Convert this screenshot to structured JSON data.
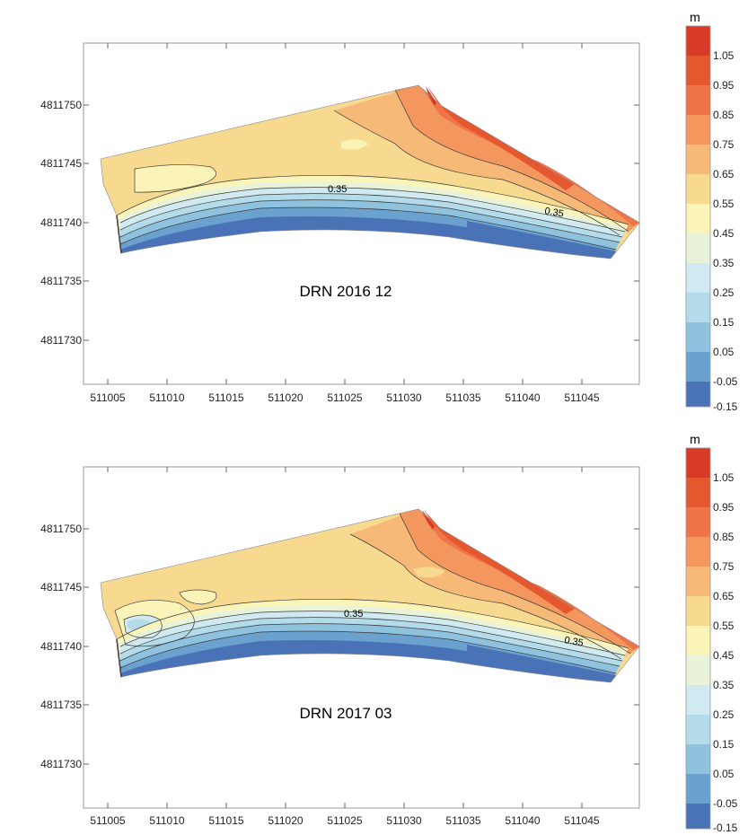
{
  "colorbar": {
    "unit": "m",
    "tick_labels": [
      "1.05",
      "0.95",
      "0.85",
      "0.75",
      "0.65",
      "0.55",
      "0.45",
      "0.35",
      "0.25",
      "0.15",
      "0.05",
      "-0.05",
      "-0.15"
    ],
    "colors": [
      "#d73a27",
      "#e4572f",
      "#f0744a",
      "#f3975f",
      "#f6b978",
      "#f8d990",
      "#fbf4b9",
      "#e9f3d9",
      "#d1eaf1",
      "#b3dbea",
      "#8fc2de",
      "#6ba1cf",
      "#4a72b6"
    ]
  },
  "x_axis": {
    "tick_labels": [
      "511005",
      "511010",
      "511015",
      "511020",
      "511025",
      "511030",
      "511035",
      "511040",
      "511045"
    ]
  },
  "y_axis": {
    "tick_labels": [
      "4811750",
      "4811745",
      "4811740",
      "4811735",
      "4811730"
    ]
  },
  "panels": [
    {
      "title": "DRN 2016 12",
      "contour_labels": [
        "0.35",
        "0.35"
      ]
    },
    {
      "title": "DRN 2017 03",
      "contour_labels": [
        "0.35",
        "0.35"
      ]
    }
  ]
}
